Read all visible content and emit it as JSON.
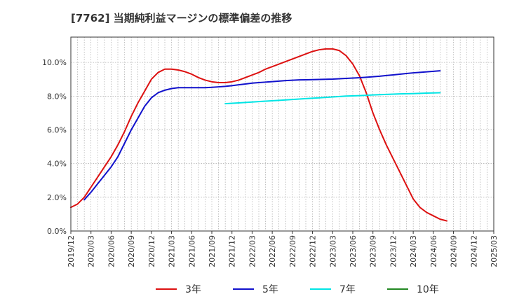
{
  "chart_data": {
    "type": "line",
    "title": "[7762]  当期純利益マージンの標準偏差の推移",
    "xlabel": "",
    "ylabel": "",
    "ylim": [
      0,
      11.5
    ],
    "yticks": [
      0,
      2,
      4,
      6,
      8,
      10
    ],
    "ytick_labels": [
      "0.0%",
      "2.0%",
      "4.0%",
      "6.0%",
      "8.0%",
      "10.0%"
    ],
    "xlim": [
      0,
      63
    ],
    "xtick_labels": [
      "2019/12",
      "2020/03",
      "2020/06",
      "2020/09",
      "2020/12",
      "2021/03",
      "2021/06",
      "2021/09",
      "2021/12",
      "2022/03",
      "2022/06",
      "2022/09",
      "2022/12",
      "2023/03",
      "2023/06",
      "2023/09",
      "2023/12",
      "2024/03",
      "2024/06",
      "2024/09",
      "2024/12",
      "2025/03"
    ],
    "grid": true,
    "legend_position": "bottom",
    "series": [
      {
        "name": "3年",
        "color": "#dd1111",
        "points": [
          [
            0,
            1.4
          ],
          [
            1,
            1.6
          ],
          [
            2,
            2.0
          ],
          [
            3,
            2.6
          ],
          [
            4,
            3.2
          ],
          [
            5,
            3.8
          ],
          [
            6,
            4.4
          ],
          [
            7,
            5.1
          ],
          [
            8,
            5.9
          ],
          [
            9,
            6.8
          ],
          [
            10,
            7.6
          ],
          [
            11,
            8.3
          ],
          [
            12,
            9.0
          ],
          [
            13,
            9.4
          ],
          [
            14,
            9.6
          ],
          [
            15,
            9.6
          ],
          [
            16,
            9.55
          ],
          [
            17,
            9.45
          ],
          [
            18,
            9.3
          ],
          [
            19,
            9.1
          ],
          [
            20,
            8.95
          ],
          [
            21,
            8.85
          ],
          [
            22,
            8.8
          ],
          [
            23,
            8.8
          ],
          [
            24,
            8.85
          ],
          [
            25,
            8.95
          ],
          [
            26,
            9.1
          ],
          [
            27,
            9.25
          ],
          [
            28,
            9.4
          ],
          [
            29,
            9.6
          ],
          [
            30,
            9.75
          ],
          [
            31,
            9.9
          ],
          [
            32,
            10.05
          ],
          [
            33,
            10.2
          ],
          [
            34,
            10.35
          ],
          [
            35,
            10.5
          ],
          [
            36,
            10.65
          ],
          [
            37,
            10.75
          ],
          [
            38,
            10.8
          ],
          [
            39,
            10.8
          ],
          [
            40,
            10.7
          ],
          [
            41,
            10.4
          ],
          [
            42,
            9.9
          ],
          [
            43,
            9.2
          ],
          [
            44,
            8.2
          ],
          [
            45,
            7.0
          ],
          [
            46,
            6.0
          ],
          [
            47,
            5.1
          ],
          [
            48,
            4.3
          ],
          [
            49,
            3.5
          ],
          [
            50,
            2.7
          ],
          [
            51,
            1.9
          ],
          [
            52,
            1.4
          ],
          [
            53,
            1.1
          ],
          [
            54,
            0.9
          ],
          [
            55,
            0.7
          ],
          [
            56,
            0.6
          ]
        ]
      },
      {
        "name": "5年",
        "color": "#1111cc",
        "points": [
          [
            2,
            1.85
          ],
          [
            3,
            2.3
          ],
          [
            4,
            2.8
          ],
          [
            5,
            3.3
          ],
          [
            6,
            3.8
          ],
          [
            7,
            4.4
          ],
          [
            8,
            5.2
          ],
          [
            9,
            6.0
          ],
          [
            10,
            6.7
          ],
          [
            11,
            7.4
          ],
          [
            12,
            7.9
          ],
          [
            13,
            8.2
          ],
          [
            14,
            8.35
          ],
          [
            15,
            8.45
          ],
          [
            16,
            8.5
          ],
          [
            17,
            8.5
          ],
          [
            18,
            8.5
          ],
          [
            19,
            8.5
          ],
          [
            20,
            8.5
          ],
          [
            21,
            8.52
          ],
          [
            22,
            8.55
          ],
          [
            23,
            8.58
          ],
          [
            24,
            8.62
          ],
          [
            25,
            8.67
          ],
          [
            26,
            8.72
          ],
          [
            27,
            8.77
          ],
          [
            28,
            8.8
          ],
          [
            29,
            8.83
          ],
          [
            30,
            8.86
          ],
          [
            31,
            8.89
          ],
          [
            32,
            8.92
          ],
          [
            33,
            8.94
          ],
          [
            34,
            8.96
          ],
          [
            35,
            8.97
          ],
          [
            36,
            8.98
          ],
          [
            37,
            8.99
          ],
          [
            38,
            9.0
          ],
          [
            39,
            9.01
          ],
          [
            40,
            9.03
          ],
          [
            41,
            9.05
          ],
          [
            42,
            9.07
          ],
          [
            43,
            9.09
          ],
          [
            44,
            9.12
          ],
          [
            45,
            9.15
          ],
          [
            46,
            9.18
          ],
          [
            47,
            9.22
          ],
          [
            48,
            9.26
          ],
          [
            49,
            9.3
          ],
          [
            50,
            9.34
          ],
          [
            51,
            9.38
          ],
          [
            52,
            9.41
          ],
          [
            53,
            9.44
          ],
          [
            54,
            9.47
          ],
          [
            55,
            9.5
          ]
        ]
      },
      {
        "name": "7年",
        "color": "#00e5e5",
        "points": [
          [
            23,
            7.55
          ],
          [
            25,
            7.6
          ],
          [
            27,
            7.65
          ],
          [
            29,
            7.7
          ],
          [
            31,
            7.75
          ],
          [
            33,
            7.8
          ],
          [
            35,
            7.85
          ],
          [
            37,
            7.9
          ],
          [
            39,
            7.95
          ],
          [
            41,
            8.0
          ],
          [
            43,
            8.03
          ],
          [
            45,
            8.07
          ],
          [
            47,
            8.1
          ],
          [
            49,
            8.13
          ],
          [
            51,
            8.15
          ],
          [
            53,
            8.18
          ],
          [
            55,
            8.2
          ]
        ]
      },
      {
        "name": "10年",
        "color": "#228822",
        "points": []
      }
    ]
  }
}
